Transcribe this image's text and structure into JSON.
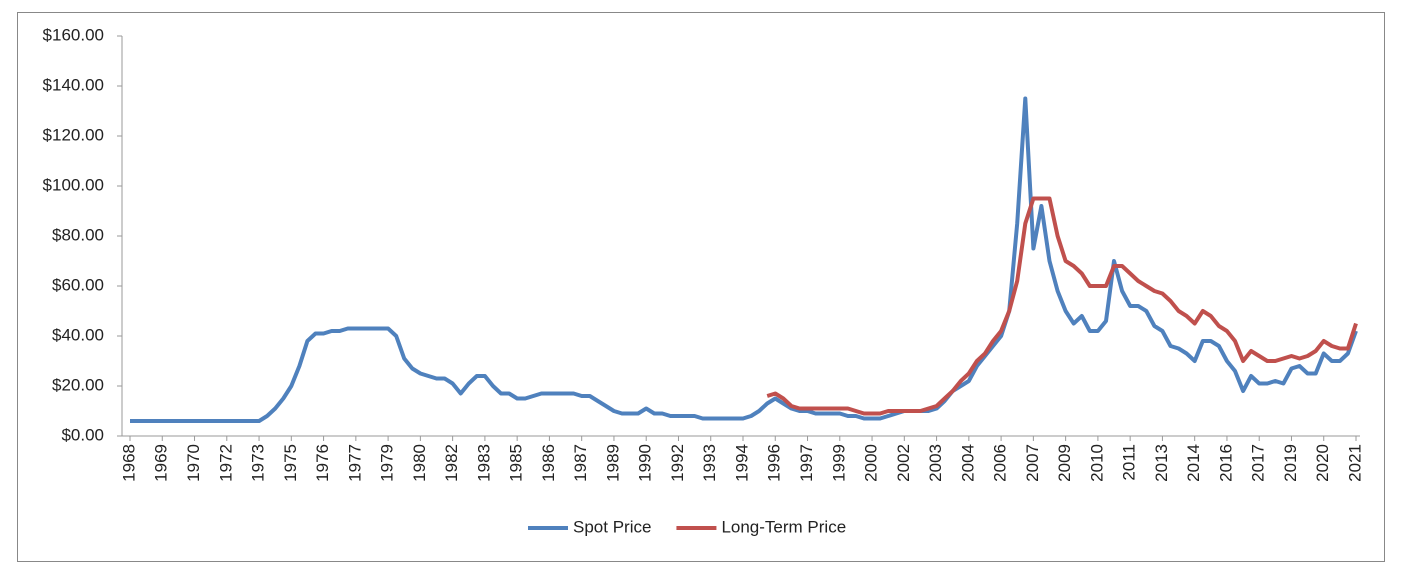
{
  "chart_data": {
    "type": "line",
    "categories": [
      "1968",
      null,
      null,
      null,
      "1969",
      null,
      null,
      null,
      "1970",
      null,
      null,
      null,
      "1972",
      null,
      null,
      null,
      "1973",
      null,
      null,
      null,
      "1975",
      null,
      null,
      null,
      "1976",
      null,
      null,
      null,
      "1977",
      null,
      null,
      null,
      "1979",
      null,
      null,
      null,
      "1980",
      null,
      null,
      null,
      "1982",
      null,
      null,
      null,
      "1983",
      null,
      null,
      null,
      "1985",
      null,
      null,
      null,
      "1986",
      null,
      null,
      null,
      "1987",
      null,
      null,
      null,
      "1989",
      null,
      null,
      null,
      "1990",
      null,
      null,
      null,
      "1992",
      null,
      null,
      null,
      "1993",
      null,
      null,
      null,
      "1994",
      null,
      null,
      null,
      "1996",
      null,
      null,
      null,
      "1997",
      null,
      null,
      null,
      "1999",
      null,
      null,
      null,
      "2000",
      null,
      null,
      null,
      "2002",
      null,
      null,
      null,
      "2003",
      null,
      null,
      null,
      "2004",
      null,
      null,
      null,
      "2006",
      null,
      null,
      null,
      "2007",
      null,
      null,
      null,
      "2009",
      null,
      null,
      null,
      "2010",
      null,
      null,
      null,
      "2011",
      null,
      null,
      null,
      "2013",
      null,
      null,
      null,
      "2014",
      null,
      null,
      null,
      "2016",
      null,
      null,
      null,
      "2017",
      null,
      null,
      null,
      "2019",
      null,
      null,
      null,
      "2020",
      null,
      null,
      null,
      "2021"
    ],
    "series": [
      {
        "name": "Spot Price",
        "color": "#4f81bd",
        "values": [
          6,
          6,
          6,
          6,
          6,
          6,
          6,
          6,
          6,
          6,
          6,
          6,
          6,
          6,
          6,
          6,
          6,
          8,
          11,
          15,
          20,
          28,
          38,
          41,
          41,
          42,
          42,
          43,
          43,
          43,
          43,
          43,
          43,
          40,
          31,
          27,
          25,
          24,
          23,
          23,
          21,
          17,
          21,
          24,
          24,
          20,
          17,
          17,
          15,
          15,
          16,
          17,
          17,
          17,
          17,
          17,
          16,
          16,
          14,
          12,
          10,
          9,
          9,
          9,
          11,
          9,
          9,
          8,
          8,
          8,
          8,
          7,
          7,
          7,
          7,
          7,
          7,
          8,
          10,
          13,
          15,
          13,
          11,
          10,
          10,
          9,
          9,
          9,
          9,
          8,
          8,
          7,
          7,
          7,
          8,
          9,
          10,
          10,
          10,
          10,
          11,
          14,
          18,
          20,
          22,
          28,
          32,
          36,
          40,
          50,
          85,
          135,
          75,
          92,
          70,
          58,
          50,
          45,
          48,
          42,
          42,
          46,
          70,
          58,
          52,
          52,
          50,
          44,
          42,
          36,
          35,
          33,
          30,
          38,
          38,
          36,
          30,
          26,
          18,
          24,
          21,
          21,
          22,
          21,
          27,
          28,
          25,
          25,
          33,
          30,
          30,
          33,
          42
        ]
      },
      {
        "name": "Long-Term Price",
        "color": "#c0504d",
        "values": [
          null,
          null,
          null,
          null,
          null,
          null,
          null,
          null,
          null,
          null,
          null,
          null,
          null,
          null,
          null,
          null,
          null,
          null,
          null,
          null,
          null,
          null,
          null,
          null,
          null,
          null,
          null,
          null,
          null,
          null,
          null,
          null,
          null,
          null,
          null,
          null,
          null,
          null,
          null,
          null,
          null,
          null,
          null,
          null,
          null,
          null,
          null,
          null,
          null,
          null,
          null,
          null,
          null,
          null,
          null,
          null,
          null,
          null,
          null,
          null,
          null,
          null,
          null,
          null,
          null,
          null,
          null,
          null,
          null,
          null,
          null,
          null,
          null,
          null,
          null,
          null,
          null,
          null,
          null,
          16,
          17,
          15,
          12,
          11,
          11,
          11,
          11,
          11,
          11,
          11,
          10,
          9,
          9,
          9,
          10,
          10,
          10,
          10,
          10,
          11,
          12,
          15,
          18,
          22,
          25,
          30,
          33,
          38,
          42,
          50,
          62,
          85,
          95,
          95,
          95,
          80,
          70,
          68,
          65,
          60,
          60,
          60,
          68,
          68,
          65,
          62,
          60,
          58,
          57,
          54,
          50,
          48,
          45,
          50,
          48,
          44,
          42,
          38,
          30,
          34,
          32,
          30,
          30,
          31,
          32,
          31,
          32,
          34,
          38,
          36,
          35,
          35,
          45
        ]
      }
    ],
    "ylim": [
      0,
      160
    ],
    "yticks": [
      {
        "value": 0,
        "label": "$0.00"
      },
      {
        "value": 20,
        "label": "$20.00"
      },
      {
        "value": 40,
        "label": "$40.00"
      },
      {
        "value": 60,
        "label": "$60.00"
      },
      {
        "value": 80,
        "label": "$80.00"
      },
      {
        "value": 100,
        "label": "$100.00"
      },
      {
        "value": 120,
        "label": "$120.00"
      },
      {
        "value": 140,
        "label": "$140.00"
      },
      {
        "value": 160,
        "label": "$160.00"
      }
    ],
    "legend": "bottom"
  }
}
